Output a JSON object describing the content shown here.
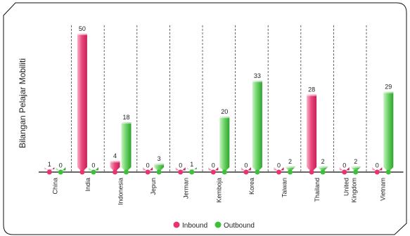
{
  "chart_data": {
    "type": "bar",
    "title": "",
    "xlabel": "",
    "ylabel": "Bilangan Pelajar Mobiliti",
    "ylim": [
      0,
      50
    ],
    "grid": false,
    "legend_position": "bottom",
    "categories": [
      "China",
      "India",
      "Indonesia",
      "Jepun",
      "Jerman",
      "Kemboja",
      "Korea",
      "Taiwan",
      "Thailand",
      "United Kingdom",
      "Vietnam"
    ],
    "series": [
      {
        "name": "Inbound",
        "color": "#e8336e",
        "values": [
          1,
          50,
          4,
          0,
          0,
          0,
          0,
          0,
          28,
          0,
          0
        ]
      },
      {
        "name": "Outbound",
        "color": "#3cc03a",
        "values": [
          0,
          0,
          18,
          3,
          1,
          20,
          33,
          2,
          2,
          2,
          29
        ]
      }
    ]
  }
}
